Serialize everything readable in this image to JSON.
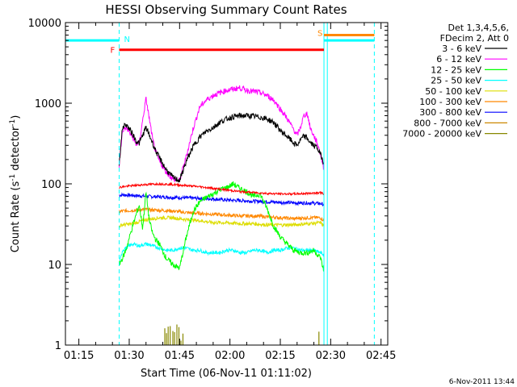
{
  "chart_data": {
    "type": "line",
    "title": "HESSI Observing Summary Count Rates",
    "xlabel": "Start Time (06-Nov-11 01:11:02)",
    "ylabel": "Count Rate (s",
    "ylabel_sup1": "-1",
    "ylabel_mid": " detector",
    "ylabel_sup2": "-1",
    "ylabel_end": ")",
    "x_units": "minutes after 01:11:02",
    "xlim": [
      0,
      96
    ],
    "ylim": [
      1,
      10000
    ],
    "yscale": "log",
    "x_ticks": [
      {
        "label": "01:15",
        "value": 4
      },
      {
        "label": "01:30",
        "value": 19
      },
      {
        "label": "01:45",
        "value": 34
      },
      {
        "label": "02:00",
        "value": 49
      },
      {
        "label": "02:15",
        "value": 64
      },
      {
        "label": "02:30",
        "value": 79
      },
      {
        "label": "02:45",
        "value": 94
      }
    ],
    "y_ticks": [
      {
        "label": "1",
        "value": 1
      },
      {
        "label": "10",
        "value": 10
      },
      {
        "label": "100",
        "value": 100
      },
      {
        "label": "1000",
        "value": 1000
      },
      {
        "label": "10000",
        "value": 10000
      }
    ],
    "legend_header": [
      "Det 1,3,4,5,6,",
      "FDecim 2, Att 0"
    ],
    "legend_position": "right",
    "series": [
      {
        "name": "3 - 6 keV",
        "color": "#000000",
        "x": [
          16,
          17,
          18,
          20,
          21,
          22,
          24,
          26,
          27,
          28,
          30,
          32,
          34,
          36,
          38,
          40,
          42,
          44,
          46,
          48,
          50,
          52,
          54,
          56,
          58,
          60,
          62,
          64,
          66,
          68,
          69,
          70,
          71,
          72,
          73,
          75,
          76,
          77
        ],
        "y": [
          180,
          500,
          550,
          420,
          340,
          320,
          500,
          320,
          250,
          210,
          150,
          120,
          110,
          190,
          290,
          380,
          450,
          500,
          580,
          640,
          680,
          700,
          700,
          690,
          670,
          640,
          580,
          460,
          390,
          320,
          300,
          350,
          390,
          370,
          320,
          280,
          230,
          180
        ]
      },
      {
        "name": "6 - 12 keV",
        "color": "#ff00ff",
        "x": [
          16,
          17,
          18,
          20,
          21,
          22,
          24,
          26,
          27,
          28,
          30,
          32,
          34,
          36,
          38,
          40,
          42,
          44,
          46,
          48,
          50,
          52,
          54,
          56,
          58,
          60,
          62,
          64,
          66,
          68,
          69,
          70,
          71,
          72,
          73,
          75,
          76,
          77
        ],
        "y": [
          170,
          460,
          500,
          380,
          310,
          320,
          1150,
          350,
          240,
          190,
          140,
          115,
          110,
          220,
          480,
          900,
          1100,
          1250,
          1350,
          1450,
          1500,
          1550,
          1450,
          1400,
          1350,
          1250,
          1100,
          850,
          650,
          470,
          400,
          500,
          700,
          750,
          480,
          320,
          230,
          150
        ]
      },
      {
        "name": "12 - 25 keV",
        "color": "#00ff00",
        "x": [
          16,
          17,
          18,
          20,
          22,
          23,
          24,
          25,
          26,
          27,
          28,
          30,
          32,
          34,
          36,
          38,
          40,
          42,
          44,
          46,
          48,
          50,
          52,
          54,
          56,
          58,
          60,
          62,
          64,
          66,
          68,
          70,
          72,
          74,
          76,
          77
        ],
        "y": [
          10,
          12,
          15,
          30,
          55,
          28,
          80,
          35,
          24,
          20,
          18,
          12,
          10,
          9,
          22,
          45,
          60,
          68,
          75,
          85,
          90,
          100,
          88,
          80,
          70,
          75,
          50,
          30,
          22,
          18,
          15,
          14,
          14,
          15,
          12,
          8
        ]
      },
      {
        "name": "25 - 50 keV",
        "color": "#00ffff",
        "x": [
          16,
          17,
          18,
          20,
          22,
          24,
          26,
          28,
          30,
          32,
          34,
          36,
          38,
          40,
          42,
          44,
          46,
          48,
          50,
          52,
          54,
          56,
          58,
          60,
          62,
          64,
          66,
          68,
          70,
          72,
          74,
          76,
          77
        ],
        "y": [
          10,
          15,
          16,
          18,
          17,
          18,
          17,
          16,
          15,
          15,
          16,
          16,
          15,
          15,
          14,
          14,
          14,
          15,
          15,
          14,
          14,
          15,
          15,
          14,
          15,
          15,
          16,
          16,
          15,
          15,
          15,
          14,
          13
        ]
      },
      {
        "name": "50 - 100 keV",
        "color": "#dddd00",
        "x": [
          16,
          17,
          20,
          24,
          28,
          32,
          36,
          40,
          44,
          48,
          52,
          56,
          60,
          64,
          68,
          72,
          76,
          77
        ],
        "y": [
          30,
          31,
          32,
          36,
          38,
          38,
          36,
          35,
          33,
          33,
          32,
          32,
          31,
          31,
          31,
          32,
          33,
          30
        ]
      },
      {
        "name": "100 - 300 keV",
        "color": "#ff8800",
        "x": [
          16,
          17,
          20,
          24,
          28,
          32,
          36,
          40,
          44,
          48,
          52,
          56,
          60,
          64,
          68,
          72,
          76,
          77
        ],
        "y": [
          45,
          46,
          47,
          48,
          47,
          46,
          44,
          43,
          42,
          41,
          40,
          40,
          39,
          38,
          37,
          38,
          38,
          35
        ]
      },
      {
        "name": "300 - 800 keV",
        "color": "#0000ff",
        "x": [
          16,
          17,
          20,
          24,
          28,
          32,
          36,
          40,
          44,
          48,
          52,
          56,
          60,
          64,
          68,
          72,
          76,
          77
        ],
        "y": [
          72,
          73,
          72,
          70,
          69,
          68,
          67,
          66,
          65,
          63,
          62,
          61,
          60,
          59,
          58,
          58,
          57,
          55
        ]
      },
      {
        "name": "800 - 7000 keV",
        "color": "#cc8800",
        "x": [],
        "y": []
      },
      {
        "name": "7000 - 20000 keV",
        "color": "#888800",
        "x": [],
        "y": []
      }
    ],
    "red_series": {
      "color": "#ff0000",
      "x": [
        16,
        17,
        20,
        24,
        28,
        32,
        36,
        40,
        44,
        48,
        52,
        56,
        60,
        64,
        68,
        72,
        76,
        77
      ],
      "y": [
        90,
        92,
        95,
        98,
        100,
        98,
        95,
        92,
        88,
        84,
        80,
        78,
        76,
        75,
        75,
        76,
        78,
        75
      ]
    },
    "flags": [
      {
        "label": "N",
        "color": "#00ffff",
        "level": 6000,
        "segments": [
          [
            0,
            16
          ],
          [
            77,
            92
          ]
        ]
      },
      {
        "label": "F",
        "color": "#ff0000",
        "level": 4600,
        "segments": [
          [
            16,
            77
          ]
        ]
      },
      {
        "label": "S",
        "color": "#ff8800",
        "level": 7000,
        "segments": [
          [
            77,
            92
          ]
        ]
      }
    ],
    "vertical_markers": {
      "dashed_cyan": [
        16,
        92
      ],
      "solid_cyan": [
        77,
        78
      ]
    },
    "footer_date": "6-Nov-2011 13:44"
  }
}
